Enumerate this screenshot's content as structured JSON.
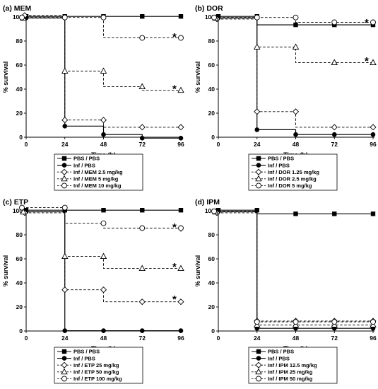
{
  "chart_data": [
    {
      "type": "line",
      "title": "(a) MEM",
      "xlabel": "Time (h)",
      "ylabel": "% survival",
      "xlim": [
        0,
        96
      ],
      "ylim": [
        0,
        100
      ],
      "xticks": [
        "0",
        "24",
        "48",
        "72",
        "96"
      ],
      "yticks": [
        "0",
        "20",
        "40",
        "60",
        "80",
        "100"
      ],
      "grid": false,
      "legend_position": "bottom",
      "series": [
        {
          "name": "PBS / PBS",
          "marker": "filled-square",
          "line": "solid",
          "points": [
            [
              0,
              100
            ],
            [
              24,
              100
            ],
            [
              48,
              100
            ],
            [
              72,
              100
            ],
            [
              96,
              100
            ]
          ]
        },
        {
          "name": "Inf / PBS",
          "marker": "filled-circle",
          "line": "solid",
          "points": [
            [
              0,
              100
            ],
            [
              24,
              10
            ],
            [
              48,
              3
            ],
            [
              72,
              0
            ],
            [
              96,
              0
            ]
          ]
        },
        {
          "name": "Inf / MEM 2.5 mg/kg",
          "marker": "open-diamond",
          "line": "dashed",
          "points": [
            [
              0,
              100
            ],
            [
              24,
              13
            ],
            [
              48,
              13
            ],
            [
              48,
              7
            ],
            [
              72,
              7
            ],
            [
              96,
              7
            ]
          ]
        },
        {
          "name": "Inf / MEM 5 mg/kg",
          "marker": "open-triangle",
          "line": "dashed",
          "points": [
            [
              0,
              97
            ],
            [
              24,
              53
            ],
            [
              48,
              53
            ],
            [
              48,
              40
            ],
            [
              72,
              40
            ],
            [
              72,
              37
            ],
            [
              96,
              37
            ]
          ]
        },
        {
          "name": "Inf / MEM 10 mg/kg",
          "marker": "open-circle",
          "line": "dashed",
          "points": [
            [
              0,
              97
            ],
            [
              24,
              97
            ],
            [
              48,
              97
            ],
            [
              48,
              80
            ],
            [
              72,
              80
            ],
            [
              96,
              80
            ]
          ]
        }
      ],
      "annotations": [
        {
          "text": "*",
          "x": 92,
          "y": 84
        },
        {
          "text": "*",
          "x": 92,
          "y": 41
        }
      ]
    },
    {
      "type": "line",
      "title": "(b) DOR",
      "xlabel": "Time (h)",
      "ylabel": "% survival",
      "xlim": [
        0,
        96
      ],
      "ylim": [
        0,
        100
      ],
      "xticks": [
        "0",
        "24",
        "48",
        "72",
        "96"
      ],
      "yticks": [
        "0",
        "20",
        "40",
        "60",
        "80",
        "100"
      ],
      "grid": false,
      "legend_position": "bottom",
      "series": [
        {
          "name": "PBS / PBS",
          "marker": "filled-square",
          "line": "solid",
          "points": [
            [
              0,
              100
            ],
            [
              24,
              100
            ],
            [
              24,
              93
            ],
            [
              48,
              93
            ],
            [
              72,
              93
            ],
            [
              96,
              93
            ]
          ]
        },
        {
          "name": "Inf / PBS",
          "marker": "filled-circle",
          "line": "solid",
          "points": [
            [
              0,
              100
            ],
            [
              24,
              7
            ],
            [
              48,
              3
            ],
            [
              72,
              3
            ],
            [
              96,
              3
            ]
          ]
        },
        {
          "name": "Inf / DOR 1.25 mg/kg",
          "marker": "open-diamond",
          "line": "dashed",
          "points": [
            [
              0,
              97
            ],
            [
              24,
              20
            ],
            [
              48,
              20
            ],
            [
              48,
              7
            ],
            [
              72,
              7
            ],
            [
              96,
              7
            ]
          ]
        },
        {
          "name": "Inf / DOR 2.5 mg/kg",
          "marker": "open-triangle",
          "line": "dashed",
          "points": [
            [
              0,
              97
            ],
            [
              24,
              73
            ],
            [
              48,
              73
            ],
            [
              48,
              60
            ],
            [
              72,
              60
            ],
            [
              96,
              60
            ]
          ]
        },
        {
          "name": "Inf / DOR 5 mg/kg",
          "marker": "open-circle",
          "line": "dashed",
          "points": [
            [
              0,
              97
            ],
            [
              24,
              97
            ],
            [
              48,
              97
            ],
            [
              48,
              93
            ],
            [
              72,
              93
            ],
            [
              96,
              93
            ]
          ]
        }
      ],
      "annotations": [
        {
          "text": "*",
          "x": 92,
          "y": 96
        },
        {
          "text": "*",
          "x": 92,
          "y": 64
        }
      ]
    },
    {
      "type": "line",
      "title": "(c) ETP",
      "xlabel": "Time (h)",
      "ylabel": "% survival",
      "xlim": [
        0,
        96
      ],
      "ylim": [
        0,
        100
      ],
      "xticks": [
        "0",
        "24",
        "48",
        "72",
        "96"
      ],
      "yticks": [
        "0",
        "20",
        "40",
        "60",
        "80",
        "100"
      ],
      "grid": false,
      "legend_position": "bottom",
      "series": [
        {
          "name": "PBS / PBS",
          "marker": "filled-square",
          "line": "solid",
          "points": [
            [
              0,
              100
            ],
            [
              24,
              100
            ],
            [
              48,
              100
            ],
            [
              72,
              100
            ],
            [
              96,
              100
            ]
          ]
        },
        {
          "name": "Inf / PBS",
          "marker": "filled-circle",
          "line": "solid",
          "points": [
            [
              0,
              100
            ],
            [
              24,
              1
            ],
            [
              48,
              1
            ],
            [
              72,
              1
            ],
            [
              96,
              1
            ]
          ]
        },
        {
          "name": "Inf / ETP 25 mg/kg",
          "marker": "open-diamond",
          "line": "dashed",
          "points": [
            [
              0,
              97
            ],
            [
              24,
              33
            ],
            [
              48,
              33
            ],
            [
              48,
              23
            ],
            [
              72,
              23
            ],
            [
              96,
              23
            ]
          ]
        },
        {
          "name": "Inf / ETP 50 mg/kg",
          "marker": "open-triangle",
          "line": "dashed",
          "points": [
            [
              0,
              97
            ],
            [
              24,
              60
            ],
            [
              48,
              60
            ],
            [
              48,
              50
            ],
            [
              72,
              50
            ],
            [
              96,
              50
            ]
          ]
        },
        {
          "name": "Inf / ETP 100 mg/kg",
          "marker": "open-circle",
          "line": "dashed",
          "points": [
            [
              0,
              100
            ],
            [
              24,
              100
            ],
            [
              24,
              87
            ],
            [
              48,
              87
            ],
            [
              48,
              83
            ],
            [
              72,
              83
            ],
            [
              96,
              83
            ],
            [
              96,
              80
            ]
          ]
        }
      ],
      "annotations": [
        {
          "text": "*",
          "x": 92,
          "y": 87
        },
        {
          "text": "*",
          "x": 92,
          "y": 54
        },
        {
          "text": "*",
          "x": 92,
          "y": 27
        }
      ]
    },
    {
      "type": "line",
      "title": "(d) IPM",
      "xlabel": "Time (h)",
      "ylabel": "% survival",
      "xlim": [
        0,
        96
      ],
      "ylim": [
        0,
        100
      ],
      "xticks": [
        "0",
        "24",
        "48",
        "72",
        "96"
      ],
      "yticks": [
        "0",
        "20",
        "40",
        "60",
        "80",
        "100"
      ],
      "grid": false,
      "legend_position": "bottom",
      "series": [
        {
          "name": "PBS / PBS",
          "marker": "filled-square",
          "line": "solid",
          "points": [
            [
              0,
              100
            ],
            [
              24,
              100
            ],
            [
              24,
              97
            ],
            [
              48,
              97
            ],
            [
              72,
              97
            ],
            [
              96,
              97
            ]
          ]
        },
        {
          "name": "Inf / PBS",
          "marker": "filled-circle",
          "line": "solid",
          "points": [
            [
              0,
              100
            ],
            [
              24,
              3
            ],
            [
              48,
              3
            ],
            [
              72,
              3
            ],
            [
              96,
              3
            ]
          ]
        },
        {
          "name": "Inf / IPM 12.5 mg/kg",
          "marker": "open-diamond",
          "line": "dashed",
          "points": [
            [
              0,
              97
            ],
            [
              24,
              7
            ],
            [
              48,
              7
            ],
            [
              72,
              7
            ],
            [
              96,
              7
            ]
          ]
        },
        {
          "name": "Inf / IPM 25 mg/kg",
          "marker": "open-triangle",
          "line": "dashed",
          "points": [
            [
              0,
              97
            ],
            [
              24,
              3
            ],
            [
              48,
              3
            ],
            [
              72,
              3
            ],
            [
              96,
              3
            ]
          ]
        },
        {
          "name": "Inf / IPM 50 mg/kg",
          "marker": "open-circle",
          "line": "dashed",
          "points": [
            [
              0,
              97
            ],
            [
              24,
              5
            ],
            [
              48,
              5
            ],
            [
              72,
              5
            ],
            [
              96,
              5
            ]
          ]
        }
      ],
      "annotations": []
    }
  ]
}
